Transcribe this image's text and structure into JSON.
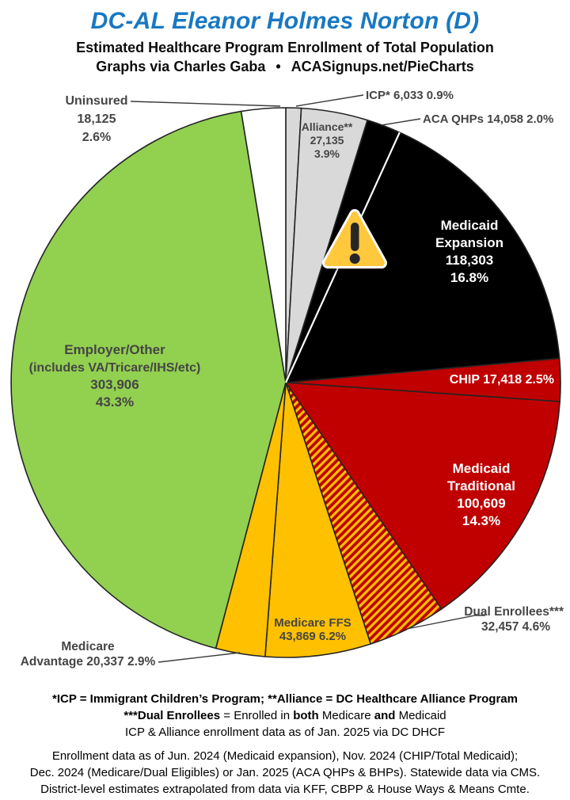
{
  "header": {
    "title": "DC-AL Eleanor Holmes Norton (D)",
    "subtitle": "Estimated Healthcare Program Enrollment of Total Population",
    "byline_left": "Graphs via Charles Gaba",
    "byline_bullet": "•",
    "byline_right": "ACASignups.net/PieCharts"
  },
  "palette": {
    "title_blue": "#1878C2",
    "black": "#000000",
    "dark_red": "#C00000",
    "gold": "#FFC000",
    "green": "#92D050",
    "light_gray": "#D9D9D9",
    "white": "#FFFFFF",
    "label_gray": "#454545",
    "warning_yellow": "#FFC83D"
  },
  "overlay": {
    "warning_icon_glyph": "⚠"
  },
  "chart_data": {
    "type": "pie",
    "title": "Estimated Healthcare Program Enrollment of Total Population",
    "start_angle_deg": 0,
    "direction": "clockwise",
    "legend_position": "none",
    "slices": [
      {
        "id": "icp",
        "name": "ICP*",
        "value": 6033,
        "pct": 0.9,
        "color": "#D9D9D9",
        "label_lines": [
          "ICP* 6,033 0.9%"
        ]
      },
      {
        "id": "alliance",
        "name": "Alliance**",
        "value": 27135,
        "pct": 3.9,
        "color": "#D9D9D9",
        "label_lines": [
          "Alliance**",
          "27,135",
          "3.9%"
        ]
      },
      {
        "id": "aca-qhps",
        "name": "ACA QHPs",
        "value": 14058,
        "pct": 2.0,
        "color": "#000000",
        "label_lines": [
          "ACA QHPs 14,058 2.0%"
        ]
      },
      {
        "id": "medicaid-expansion",
        "name": "Medicaid Expansion",
        "value": 118303,
        "pct": 16.8,
        "color": "#000000",
        "white_leading_edge": true,
        "label_lines": [
          "Medicaid",
          "Expansion",
          "118,303",
          "16.8%"
        ]
      },
      {
        "id": "chip",
        "name": "CHIP",
        "value": 17418,
        "pct": 2.5,
        "color": "#C00000",
        "label_lines": [
          "CHIP 17,418 2.5%"
        ]
      },
      {
        "id": "medicaid-traditional",
        "name": "Medicaid Traditional",
        "value": 100609,
        "pct": 14.3,
        "color": "#C00000",
        "label_lines": [
          "Medicaid",
          "Traditional",
          "100,609",
          "14.3%"
        ]
      },
      {
        "id": "dual-enrollees",
        "name": "Dual Enrollees***",
        "value": 32457,
        "pct": 4.6,
        "color": "hatch",
        "label_lines": [
          "Dual Enrollees***",
          "32,457 4.6%"
        ]
      },
      {
        "id": "medicare-ffs",
        "name": "Medicare FFS",
        "value": 43869,
        "pct": 6.2,
        "color": "#FFC000",
        "label_lines": [
          "Medicare FFS",
          "43,869 6.2%"
        ]
      },
      {
        "id": "medicare-advantage",
        "name": "Medicare Advantage",
        "value": 20337,
        "pct": 2.9,
        "color": "#FFC000",
        "label_lines": [
          "Medicare",
          "Advantage 20,337 2.9%"
        ]
      },
      {
        "id": "employer-other",
        "name": "Employer/Other (includes VA/Tricare/IHS/etc)",
        "value": 303906,
        "pct": 43.3,
        "color": "#92D050",
        "label_lines": [
          "Employer/Other",
          "(includes VA/Tricare/IHS/etc)",
          "303,906",
          "43.3%"
        ]
      },
      {
        "id": "uninsured",
        "name": "Uninsured",
        "value": 18125,
        "pct": 2.6,
        "color": "#FFFFFF",
        "label_lines": [
          "Uninsured",
          "18,125",
          "2.6%"
        ]
      }
    ]
  },
  "footnotes": {
    "line1": "*ICP = Immigrant Children’s Program; **Alliance = DC Healthcare Alliance Program",
    "line2_b1": "***Dual Enrollees",
    "line2_r1": " = Enrolled in ",
    "line2_b2": "both",
    "line2_r2": " Medicare ",
    "line2_b3": "and",
    "line2_r3": " Medicaid",
    "line3": "ICP & Alliance enrollment data as of Jan. 2025 via DC DHCF"
  },
  "source_note": {
    "line1": "Enrollment data as of Jun. 2024 (Medicaid expansion), Nov. 2024 (CHIP/Total Medicaid);",
    "line2": "Dec. 2024 (Medicare/Dual Eligibles) or Jan. 2025 (ACA QHPs & BHPs). Statewide data via CMS.",
    "line3": "District-level estimates extrapolated from data via KFF, CBPP & House Ways & Means Cmte."
  }
}
